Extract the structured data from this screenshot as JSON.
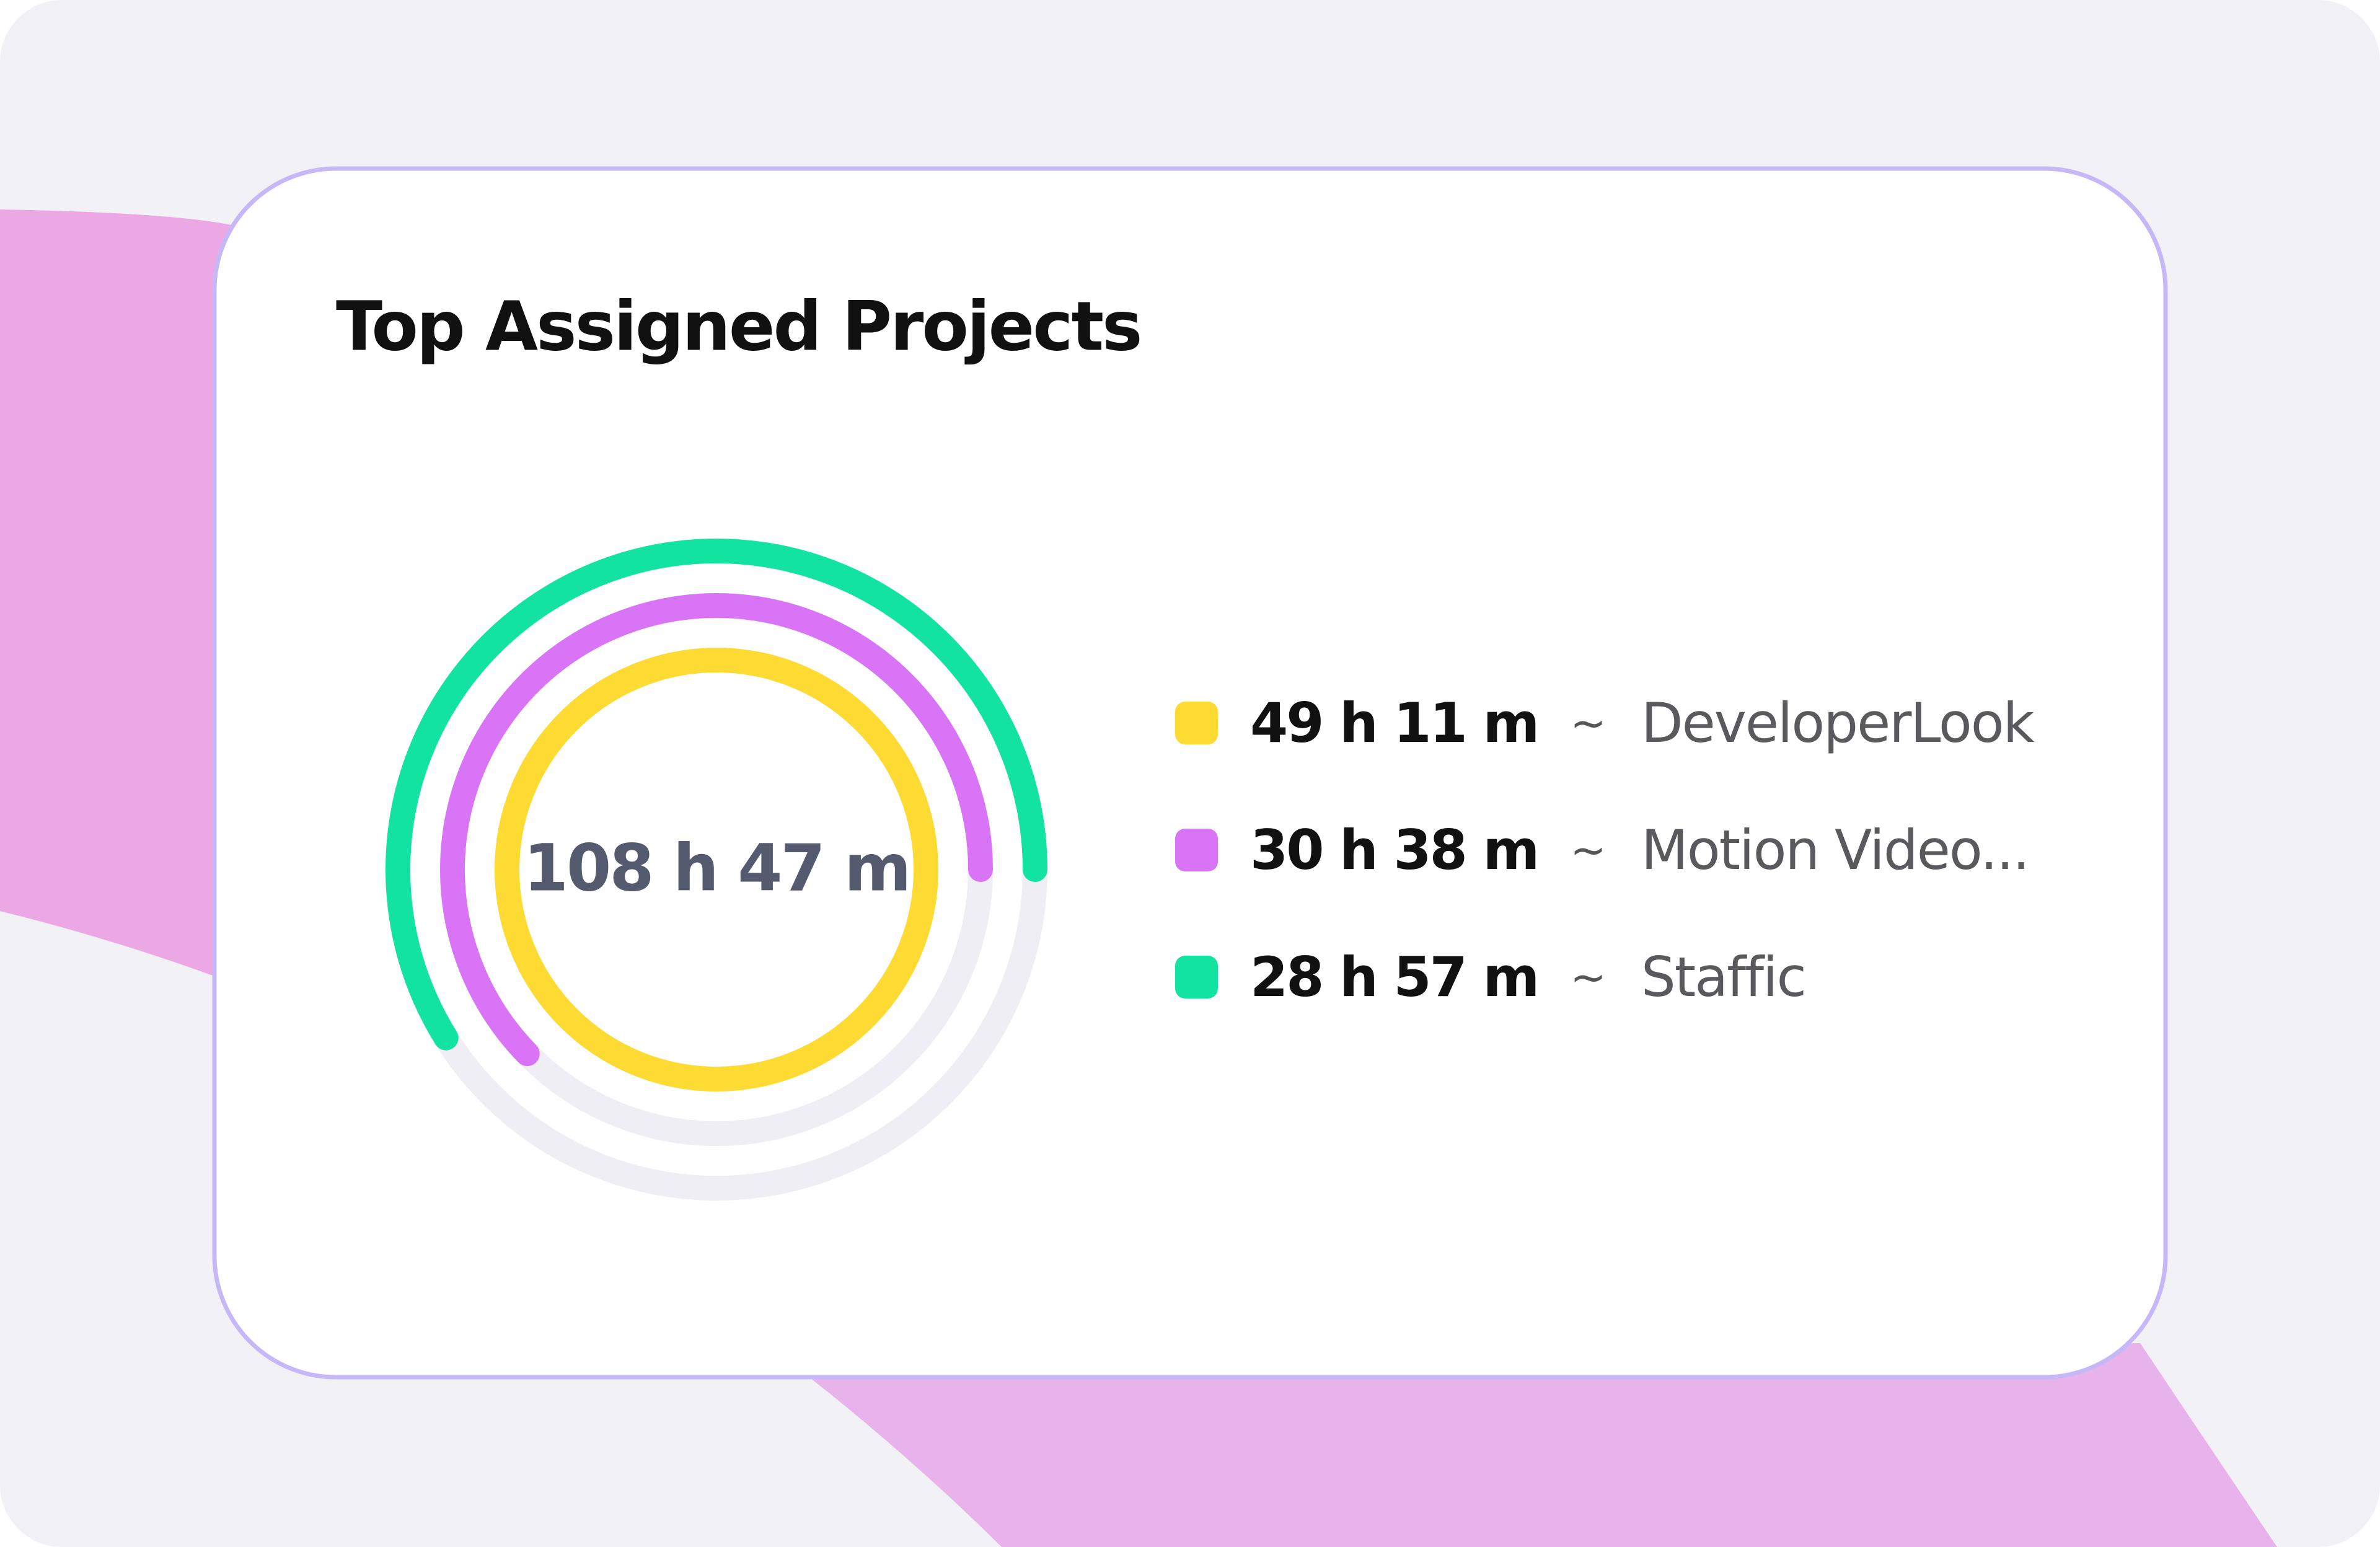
{
  "chart_data": {
    "type": "radial-bar",
    "title": "Top Assigned Projects",
    "center_label": "108 h 47 m",
    "separator": "~",
    "categories": [
      "DeveloperLook",
      "Motion Video...",
      "Staffic"
    ],
    "values": [
      2951,
      1838,
      1737
    ],
    "value_labels": [
      "49 h 11 m",
      "30 h 38 m",
      "28 h 57 m"
    ],
    "colors": [
      "#fedb33",
      "#d874f5",
      "#12e3a1"
    ],
    "track_color": "#efeef4"
  }
}
